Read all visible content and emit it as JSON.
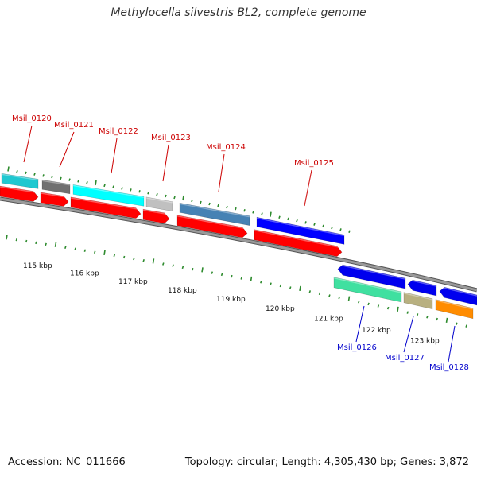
{
  "title": "Methylocella silvestris BL2, complete genome",
  "accession": "Accession: NC_011666",
  "summary": "Topology: circular; Length: 4,305,430 bp; Genes: 3,872",
  "colors": {
    "forward_label": "#cc0000",
    "reverse_label": "#0000cc",
    "tick": "#2e8b2e",
    "backbone": "#808080",
    "cds": "#ff0000"
  },
  "scale": {
    "labels": [
      "115 kbp",
      "116 kbp",
      "117 kbp",
      "118 kbp",
      "119 kbp",
      "120 kbp",
      "121 kbp",
      "122 kbp",
      "123 kbp"
    ]
  },
  "forward_genes": [
    {
      "name": "Msil_0120",
      "color": "#20c8d0"
    },
    {
      "name": "Msil_0121",
      "color": "#707070"
    },
    {
      "name": "Msil_0122",
      "color": "#00ffff"
    },
    {
      "name": "Msil_0123",
      "color": "#c0c0c0"
    },
    {
      "name": "Msil_0124",
      "color": "#4682b4"
    },
    {
      "name": "Msil_0125",
      "color": "#0000ff"
    }
  ],
  "reverse_genes": [
    {
      "name": "Msil_0126",
      "color": "#40e0a0"
    },
    {
      "name": "Msil_0127",
      "color": "#b8b080"
    },
    {
      "name": "Msil_0128",
      "color": "#ff8c00"
    }
  ]
}
